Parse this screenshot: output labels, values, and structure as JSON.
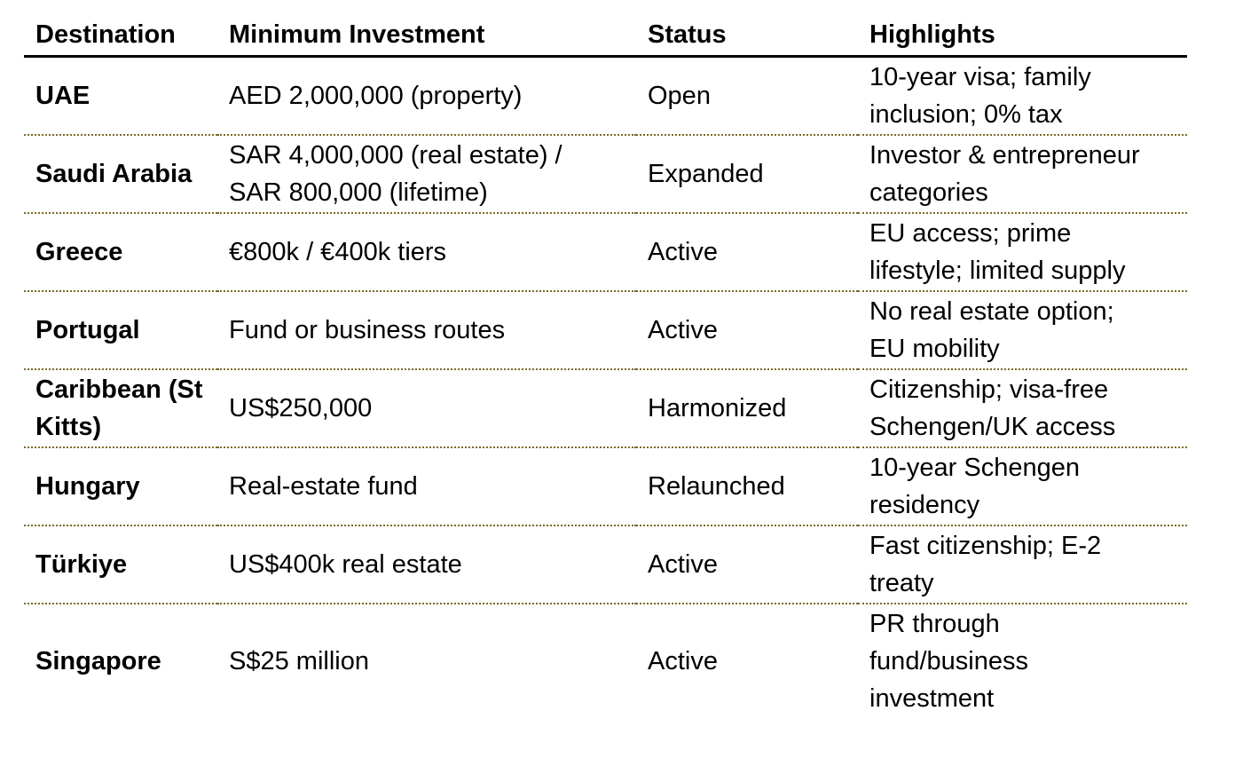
{
  "page": {
    "background": "#ffffff"
  },
  "colors": {
    "text": "#000000",
    "header_rule": "#000000",
    "row_divider": "#7c6a28"
  },
  "table": {
    "columns": [
      {
        "key": "destination",
        "label": "Destination"
      },
      {
        "key": "minimum_investment",
        "label": "Minimum Investment"
      },
      {
        "key": "status",
        "label": "Status"
      },
      {
        "key": "highlights",
        "label": "Highlights"
      }
    ],
    "rows": [
      {
        "destination": "UAE",
        "minimum_investment": "AED 2,000,000 (property)",
        "status": "Open",
        "highlights": "10-year visa; family inclusion; 0% tax"
      },
      {
        "destination": "Saudi Arabia",
        "minimum_investment": "SAR 4,000,000 (real estate) / SAR 800,000 (lifetime)",
        "status": "Expanded",
        "highlights": "Investor & entrepreneur categories"
      },
      {
        "destination": "Greece",
        "minimum_investment": "€800k / €400k tiers",
        "status": "Active",
        "highlights": "EU access; prime lifestyle; limited supply"
      },
      {
        "destination": "Portugal",
        "minimum_investment": "Fund or business routes",
        "status": "Active",
        "highlights": "No real estate option; EU mobility"
      },
      {
        "destination": "Caribbean (St Kitts)",
        "minimum_investment": "US$250,000",
        "status": "Harmonized",
        "highlights": "Citizenship; visa-free Schengen/UK access"
      },
      {
        "destination": "Hungary",
        "minimum_investment": "Real-estate fund",
        "status": "Relaunched",
        "highlights": "10-year Schengen residency"
      },
      {
        "destination": "Türkiye",
        "minimum_investment": "US$400k real estate",
        "status": "Active",
        "highlights": "Fast citizenship; E-2 treaty"
      },
      {
        "destination": "Singapore",
        "minimum_investment": "S$25 million",
        "status": "Active",
        "highlights": "PR through fund/business investment"
      }
    ]
  }
}
